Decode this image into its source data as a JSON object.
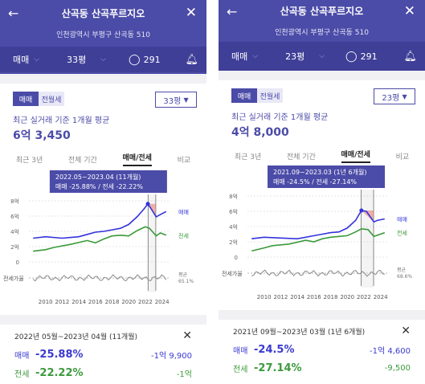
{
  "left": {
    "header": {
      "title": "산곡동 산곡푸르지오",
      "address": "인천광역시 부평구 산곡동 510",
      "trade": "매매",
      "area": "33평",
      "comments": "291"
    },
    "seg": {
      "sale": "매매",
      "rent": "전월세"
    },
    "size_select": "33평",
    "avg_label": "최근 실거래 기준 1개월 평균",
    "avg_value": "6억 3,450",
    "tabs": [
      "최근 3년",
      "전체 기간",
      "매매/전세",
      "비교"
    ],
    "tooltip": {
      "period": "2022.05~2023.04 (11개월)",
      "detail": "매매 -25.88% / 전세 -22.22%"
    },
    "summary": {
      "period": "2022년 05월~2023년 04월 (11개월)",
      "sale_label": "매매",
      "sale_pct": "-25.88%",
      "sale_amt": "-1억 9,900",
      "rent_label": "전세",
      "rent_pct": "-22.22%",
      "rent_amt": "-1억"
    }
  },
  "right": {
    "header": {
      "title": "산곡동 산곡푸르지오",
      "address": "인천광역시 부평구 산곡동 510",
      "trade": "매매",
      "area": "23평",
      "comments": "291"
    },
    "seg": {
      "sale": "매매",
      "rent": "전월세"
    },
    "size_select": "23평",
    "avg_label": "최근 실거래 기준 1개월 평균",
    "avg_value": "4억 8,000",
    "tabs": [
      "최근 3년",
      "전체 기간",
      "매매/전세",
      "비교"
    ],
    "tooltip": {
      "period": "2021.09~2023.03 (1년 6개월)",
      "detail": "매매 -24.5% / 전세 -27.14%"
    },
    "summary": {
      "period": "2021년 09월~2023년 03월 (1년 6개월)",
      "sale_label": "매매",
      "sale_pct": "-24.5%",
      "sale_amt": "-1억 4,600",
      "rent_label": "전세",
      "rent_pct": "-27.14%",
      "rent_amt": "-9,500"
    }
  },
  "chart_data": [
    {
      "type": "line",
      "x_ticks": [
        "2010",
        "2012",
        "2014",
        "2016",
        "2018",
        "2020",
        "2022",
        "2024"
      ],
      "y_ticks": [
        "0",
        "2억",
        "4억",
        "6억",
        "8억"
      ],
      "y_unit_label": "전세가율",
      "ylim": [
        0,
        8
      ],
      "series": [
        {
          "name": "매매",
          "color": "#3333dd",
          "x": [
            2008.5,
            2010,
            2012,
            2013,
            2014,
            2015,
            2016,
            2017,
            2018,
            2019,
            2020,
            2021,
            2021.8,
            2022.3,
            2022.6,
            2023.3,
            2023.8,
            2024.5
          ],
          "y": [
            3.1,
            3.3,
            3.1,
            3.2,
            3.3,
            3.6,
            3.9,
            4.0,
            4.2,
            4.4,
            4.9,
            5.9,
            6.9,
            7.6,
            7.1,
            5.9,
            6.2,
            6.6
          ]
        },
        {
          "name": "전세",
          "color": "#3a9a3a",
          "x": [
            2008.5,
            2010,
            2011,
            2013,
            2015,
            2016,
            2017,
            2018,
            2019,
            2020,
            2021,
            2022,
            2022.5,
            2023.3,
            2023.8,
            2024.5
          ],
          "y": [
            1.4,
            1.6,
            1.9,
            2.3,
            2.8,
            2.5,
            3.0,
            3.4,
            3.5,
            3.4,
            4.1,
            4.6,
            4.4,
            3.4,
            3.8,
            3.5
          ]
        }
      ],
      "ratio_label": "평균\n65.1%",
      "highlight": [
        "2022-05",
        "2023-04"
      ]
    },
    {
      "type": "line",
      "x_ticks": [
        "2010",
        "2012",
        "2014",
        "2016",
        "2018",
        "2020",
        "2022",
        "2024"
      ],
      "y_ticks": [
        "0",
        "2억",
        "4억",
        "6억",
        "8억"
      ],
      "y_unit_label": "전세가율",
      "ylim": [
        0,
        8
      ],
      "series": [
        {
          "name": "매매",
          "color": "#3333dd",
          "x": [
            2008.5,
            2010,
            2012,
            2014,
            2016,
            2017,
            2018,
            2019,
            2020,
            2021,
            2021.7,
            2022.3,
            2023.2,
            2023.6,
            2024.5
          ],
          "y": [
            2.4,
            2.6,
            2.5,
            2.4,
            2.8,
            3.0,
            3.2,
            3.3,
            3.8,
            4.8,
            6.1,
            6.0,
            4.6,
            4.8,
            5.0
          ]
        },
        {
          "name": "전세",
          "color": "#3a9a3a",
          "x": [
            2008.5,
            2010,
            2011,
            2013,
            2015,
            2016,
            2017,
            2018,
            2019,
            2020,
            2021,
            2021.7,
            2022.5,
            2023.2,
            2024.5
          ],
          "y": [
            0.8,
            1.2,
            1.5,
            1.7,
            2.2,
            2.0,
            2.4,
            2.6,
            2.7,
            2.8,
            3.3,
            3.7,
            3.6,
            2.7,
            3.2
          ]
        }
      ],
      "ratio_label": "평균\n68.6%",
      "highlight": [
        "2021-09",
        "2023-03"
      ]
    }
  ]
}
